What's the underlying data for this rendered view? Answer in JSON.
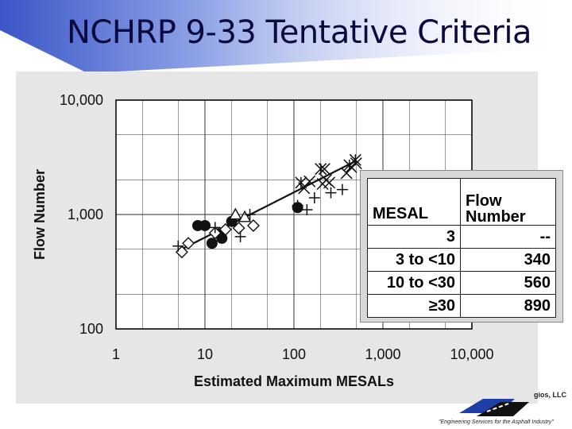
{
  "title": "NCHRP 9-33 Tentative Criteria",
  "chart_data": {
    "type": "scatter",
    "xscale": "log",
    "yscale": "log",
    "xlim": [
      1,
      10000
    ],
    "ylim": [
      100,
      10000
    ],
    "xlabel": "Estimated Maximum MESALs",
    "ylabel": "Flow Number",
    "xticks": [
      "1",
      "10",
      "100",
      "1,000",
      "10,000"
    ],
    "yticks": [
      "100",
      "1,000",
      "10,000"
    ],
    "grid": true,
    "series": [
      {
        "marker": "circle",
        "points": [
          [
            8.3,
            800
          ],
          [
            10,
            800
          ],
          [
            12,
            560
          ],
          [
            14.5,
            680
          ],
          [
            15.5,
            620
          ],
          [
            20,
            870
          ],
          [
            110,
            1150
          ]
        ]
      },
      {
        "marker": "diamond",
        "points": [
          [
            5.5,
            470
          ],
          [
            6.5,
            560
          ],
          [
            13,
            690
          ],
          [
            17,
            740
          ],
          [
            24,
            760
          ],
          [
            35,
            800
          ]
        ]
      },
      {
        "marker": "triangle",
        "points": [
          [
            22,
            1000
          ],
          [
            28,
            950
          ]
        ]
      },
      {
        "marker": "plus",
        "points": [
          [
            5,
            530
          ],
          [
            13,
            770
          ],
          [
            25,
            640
          ],
          [
            32,
            1000
          ],
          [
            110,
            1200
          ],
          [
            140,
            1100
          ],
          [
            170,
            1400
          ],
          [
            260,
            1550
          ],
          [
            350,
            1650
          ]
        ]
      },
      {
        "marker": "x",
        "points": [
          [
            130,
            1700
          ],
          [
            150,
            1950
          ],
          [
            210,
            1850
          ],
          [
            220,
            2500
          ],
          [
            230,
            2000
          ],
          [
            250,
            1900
          ],
          [
            390,
            2300
          ],
          [
            440,
            2600
          ],
          [
            500,
            2800
          ]
        ]
      },
      {
        "marker": "asterisk",
        "points": [
          [
            120,
            1900
          ],
          [
            200,
            2500
          ],
          [
            420,
            2700
          ],
          [
            490,
            3000
          ]
        ]
      }
    ],
    "trendline": {
      "x": [
        5,
        480
      ],
      "y": [
        480,
        2900
      ]
    }
  },
  "criteria_table": {
    "headers": [
      "MESAL",
      "Flow Number"
    ],
    "rows": [
      [
        "3",
        "--"
      ],
      [
        "3 to <10",
        "340"
      ],
      [
        "10 to <30",
        "560"
      ],
      [
        "≥30",
        "890"
      ]
    ]
  },
  "footer": {
    "logo_text": "gios, LLC",
    "tagline": "\"Engineering Services for the Asphalt Industry\""
  },
  "colors": {
    "title": "#0a0a3c",
    "plot_bg": "#ffffff",
    "grid": "#555555",
    "marker": "#111111",
    "page_gray": "#d8d8d8"
  }
}
